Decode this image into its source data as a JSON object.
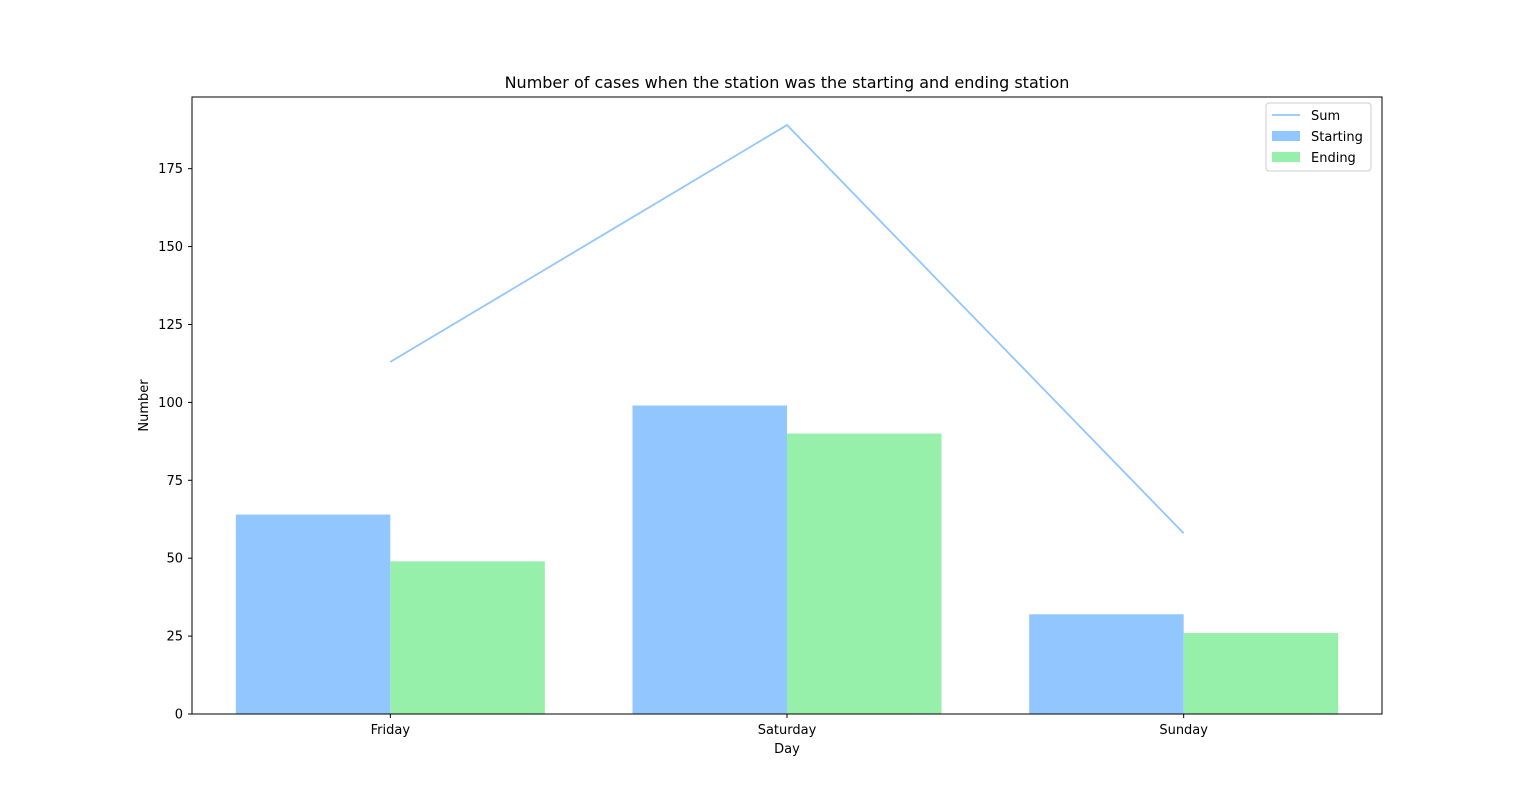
{
  "chart_data": {
    "type": "bar",
    "title": "Number of cases when the station was the starting and ending station",
    "xlabel": "Day",
    "ylabel": "Number",
    "categories": [
      "Friday",
      "Saturday",
      "Sunday"
    ],
    "series": [
      {
        "name": "Starting",
        "type": "bar",
        "values": [
          64,
          99,
          32
        ],
        "color": "#92c6ff"
      },
      {
        "name": "Ending",
        "type": "bar",
        "values": [
          49,
          90,
          26
        ],
        "color": "#97f0aa"
      },
      {
        "name": "Sum",
        "type": "line",
        "values": [
          113,
          189,
          58
        ],
        "color": "#92c6ff"
      }
    ],
    "ylim": [
      0,
      198
    ],
    "yticks": [
      0,
      25,
      50,
      75,
      100,
      125,
      150,
      175
    ],
    "ytick_labels": [
      "0",
      "25",
      "50",
      "75",
      "100",
      "125",
      "150",
      "175"
    ],
    "legend_position": "top-right",
    "legend_entries": [
      "Sum",
      "Starting",
      "Ending"
    ],
    "grid": false
  }
}
